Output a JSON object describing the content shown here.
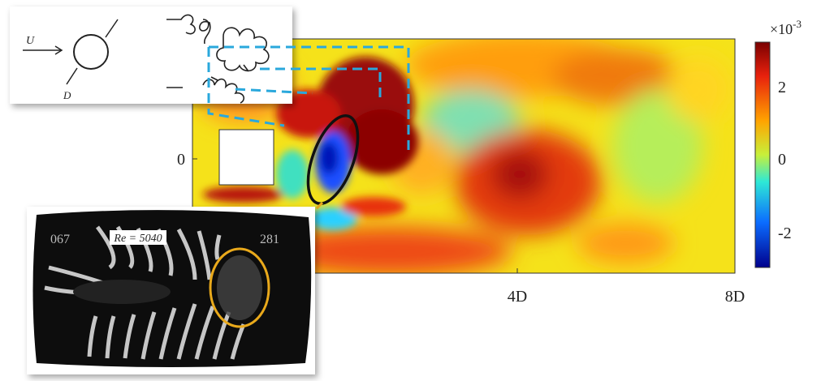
{
  "plot": {
    "y_axis_label": "0",
    "x_ticks": [
      "4D",
      "8D"
    ],
    "colorbar": {
      "multiplier": "×10",
      "exponent": "-3",
      "ticks": [
        "2",
        "0",
        "-2"
      ]
    }
  },
  "sketch_inset": {
    "flow_label": "U",
    "diameter_label": "D"
  },
  "photo_inset": {
    "reynolds_label": "Re = 5040",
    "frame_left": "067",
    "frame_right": "281"
  }
}
